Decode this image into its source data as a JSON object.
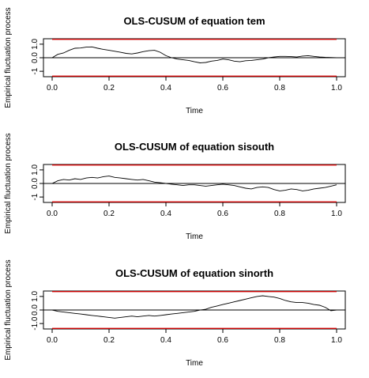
{
  "figure": {
    "xlabel": "Time",
    "ylabel": "Empirical fluctuation process"
  },
  "style": {
    "boundary_color": "#cc0000",
    "line_color": "#000000",
    "zero_color": "#000000"
  },
  "chart_data": [
    {
      "type": "line",
      "title": "OLS-CUSUM of equation tem",
      "xlabel": "Time",
      "ylabel": "Empirical fluctuation process",
      "xlim": [
        0.0,
        1.0
      ],
      "ylim": [
        -1.4,
        1.4
      ],
      "xticks": [
        "0.0",
        "0.2",
        "0.4",
        "0.6",
        "0.8",
        "1.0"
      ],
      "yticks": [
        "-1",
        "0.0",
        "1.0"
      ],
      "boundaries": [
        1.36,
        -1.36
      ],
      "zero_line": 0,
      "grid": false,
      "series": [
        {
          "x": [
            0.0,
            0.02,
            0.04,
            0.06,
            0.08,
            0.1,
            0.12,
            0.14,
            0.16,
            0.18,
            0.2,
            0.22,
            0.24,
            0.26,
            0.28,
            0.3,
            0.32,
            0.34,
            0.36,
            0.38,
            0.4,
            0.42,
            0.44,
            0.46,
            0.48,
            0.5,
            0.52,
            0.54,
            0.56,
            0.58,
            0.6,
            0.62,
            0.64,
            0.66,
            0.68,
            0.7,
            0.72,
            0.74,
            0.76,
            0.78,
            0.8,
            0.82,
            0.84,
            0.86,
            0.88,
            0.9,
            0.92,
            0.94,
            0.96,
            0.98,
            1.0
          ],
          "values": [
            0.0,
            0.25,
            0.35,
            0.55,
            0.7,
            0.72,
            0.78,
            0.8,
            0.7,
            0.62,
            0.55,
            0.48,
            0.4,
            0.32,
            0.28,
            0.35,
            0.45,
            0.52,
            0.55,
            0.4,
            0.15,
            0.0,
            -0.1,
            -0.15,
            -0.2,
            -0.3,
            -0.38,
            -0.35,
            -0.25,
            -0.2,
            -0.1,
            -0.15,
            -0.25,
            -0.3,
            -0.22,
            -0.2,
            -0.15,
            -0.1,
            0.0,
            0.05,
            0.1,
            0.1,
            0.08,
            0.05,
            0.12,
            0.15,
            0.1,
            0.05,
            0.03,
            0.02,
            0.0
          ]
        }
      ]
    },
    {
      "type": "line",
      "title": "OLS-CUSUM of equation sisouth",
      "xlabel": "Time",
      "ylabel": "Empirical fluctuation process",
      "xlim": [
        0.0,
        1.0
      ],
      "ylim": [
        -1.4,
        1.4
      ],
      "xticks": [
        "0.0",
        "0.2",
        "0.4",
        "0.6",
        "0.8",
        "1.0"
      ],
      "yticks": [
        "-1",
        "0.0",
        "1.0"
      ],
      "boundaries": [
        1.36,
        -1.36
      ],
      "zero_line": 0,
      "grid": false,
      "series": [
        {
          "x": [
            0.0,
            0.02,
            0.04,
            0.06,
            0.08,
            0.1,
            0.12,
            0.14,
            0.16,
            0.18,
            0.2,
            0.22,
            0.24,
            0.26,
            0.28,
            0.3,
            0.32,
            0.34,
            0.36,
            0.38,
            0.4,
            0.42,
            0.44,
            0.46,
            0.48,
            0.5,
            0.52,
            0.54,
            0.56,
            0.58,
            0.6,
            0.62,
            0.64,
            0.66,
            0.68,
            0.7,
            0.72,
            0.74,
            0.76,
            0.78,
            0.8,
            0.82,
            0.84,
            0.86,
            0.88,
            0.9,
            0.92,
            0.94,
            0.96,
            0.98,
            1.0
          ],
          "values": [
            0.0,
            0.2,
            0.3,
            0.25,
            0.35,
            0.3,
            0.4,
            0.45,
            0.4,
            0.5,
            0.55,
            0.45,
            0.4,
            0.35,
            0.3,
            0.25,
            0.3,
            0.2,
            0.1,
            0.05,
            0.0,
            -0.05,
            -0.1,
            -0.15,
            -0.1,
            -0.1,
            -0.15,
            -0.2,
            -0.15,
            -0.1,
            -0.05,
            -0.1,
            -0.15,
            -0.25,
            -0.35,
            -0.4,
            -0.3,
            -0.25,
            -0.3,
            -0.45,
            -0.55,
            -0.5,
            -0.4,
            -0.45,
            -0.55,
            -0.5,
            -0.4,
            -0.35,
            -0.3,
            -0.2,
            -0.1
          ]
        }
      ]
    },
    {
      "type": "line",
      "title": "OLS-CUSUM of equation sinorth",
      "xlabel": "Time",
      "ylabel": "Empirical fluctuation process",
      "xlim": [
        0.0,
        1.0
      ],
      "ylim": [
        -1.4,
        1.4
      ],
      "xticks": [
        "0.0",
        "0.2",
        "0.4",
        "0.6",
        "0.8",
        "1.0"
      ],
      "yticks": [
        "-1.0",
        "0.0",
        "1.0"
      ],
      "boundaries": [
        1.36,
        -1.36
      ],
      "zero_line": 0,
      "grid": false,
      "series": [
        {
          "x": [
            0.0,
            0.02,
            0.04,
            0.06,
            0.08,
            0.1,
            0.12,
            0.14,
            0.16,
            0.18,
            0.2,
            0.22,
            0.24,
            0.26,
            0.28,
            0.3,
            0.32,
            0.34,
            0.36,
            0.38,
            0.4,
            0.42,
            0.44,
            0.46,
            0.48,
            0.5,
            0.52,
            0.54,
            0.56,
            0.58,
            0.6,
            0.62,
            0.64,
            0.66,
            0.68,
            0.7,
            0.72,
            0.74,
            0.76,
            0.78,
            0.8,
            0.82,
            0.84,
            0.86,
            0.88,
            0.9,
            0.92,
            0.94,
            0.96,
            0.98,
            1.0
          ],
          "values": [
            0.0,
            -0.1,
            -0.15,
            -0.2,
            -0.25,
            -0.3,
            -0.35,
            -0.4,
            -0.45,
            -0.5,
            -0.55,
            -0.6,
            -0.55,
            -0.5,
            -0.45,
            -0.5,
            -0.45,
            -0.4,
            -0.45,
            -0.4,
            -0.35,
            -0.3,
            -0.25,
            -0.2,
            -0.15,
            -0.1,
            0.0,
            0.05,
            0.2,
            0.3,
            0.4,
            0.5,
            0.6,
            0.7,
            0.8,
            0.9,
            1.0,
            1.05,
            1.0,
            0.95,
            0.85,
            0.7,
            0.6,
            0.55,
            0.55,
            0.5,
            0.4,
            0.35,
            0.2,
            -0.05,
            0.0
          ]
        }
      ]
    }
  ]
}
